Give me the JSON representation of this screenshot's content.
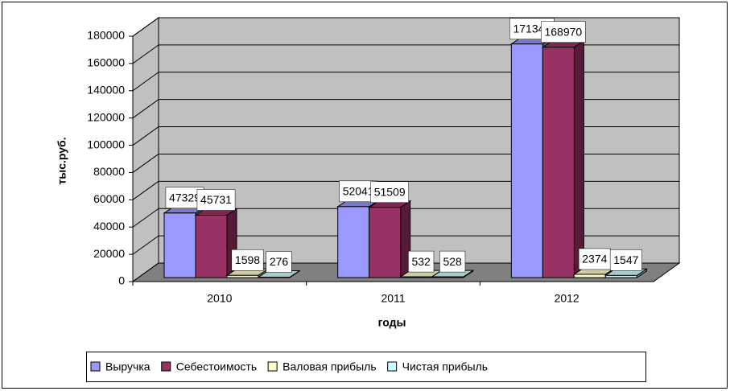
{
  "chart_data": {
    "type": "bar3d",
    "x_label": "годы",
    "y_label": "тыс.руб.",
    "categories": [
      "2010",
      "2011",
      "2012"
    ],
    "series": [
      {
        "name": "Выручка",
        "color": "#9999ff",
        "values": [
          47329,
          52041,
          171344
        ]
      },
      {
        "name": "Себестоимость",
        "color": "#993366",
        "values": [
          45731,
          51509,
          168970
        ]
      },
      {
        "name": "Валовая прибыль",
        "color": "#ffffcc",
        "values": [
          1598,
          532,
          2374
        ]
      },
      {
        "name": "Чистая прибыль",
        "color": "#ccffff",
        "values": [
          276,
          528,
          1547
        ]
      }
    ],
    "ylim": [
      0,
      180000
    ],
    "yticks": [
      0,
      20000,
      40000,
      60000,
      80000,
      100000,
      120000,
      140000,
      160000,
      180000
    ],
    "grid": true,
    "legend": "bottom"
  }
}
